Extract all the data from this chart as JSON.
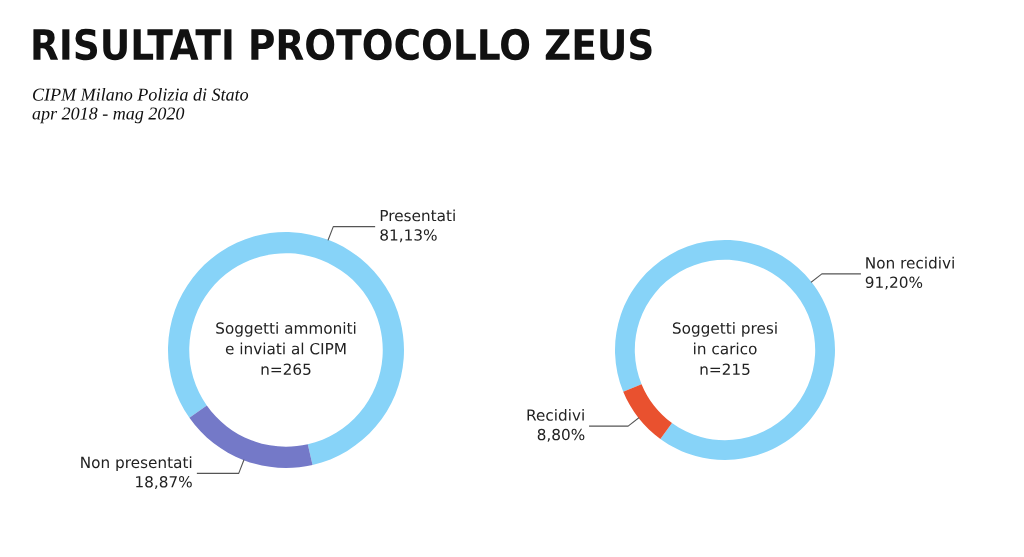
{
  "chart_data": [
    {
      "type": "donut",
      "title": "RISULTATI PROTOCOLLO ZEUS",
      "subtitle": "CIPM Milano Polizia di Stato\napr 2018 - mag 2020",
      "annotations": [
        "Soggetti ammoniti\ne inviati al CIPM\nn=265"
      ],
      "categories": [
        "Presentati",
        "Non presentati"
      ],
      "values": [
        81.13,
        18.87
      ],
      "colors": [
        "#87d3f8",
        "#7479c8"
      ],
      "value_labels": [
        "81,13%",
        "18,87%"
      ],
      "legend": false
    },
    {
      "type": "donut",
      "annotations": [
        "Soggetti presi\nin carico\nn=215"
      ],
      "categories": [
        "Non recidivi",
        "Recidivi"
      ],
      "values": [
        91.2,
        8.8
      ],
      "colors": [
        "#87d3f8",
        "#e9512f"
      ],
      "value_labels": [
        "91,20%",
        "8,80%"
      ],
      "legend": false
    }
  ]
}
